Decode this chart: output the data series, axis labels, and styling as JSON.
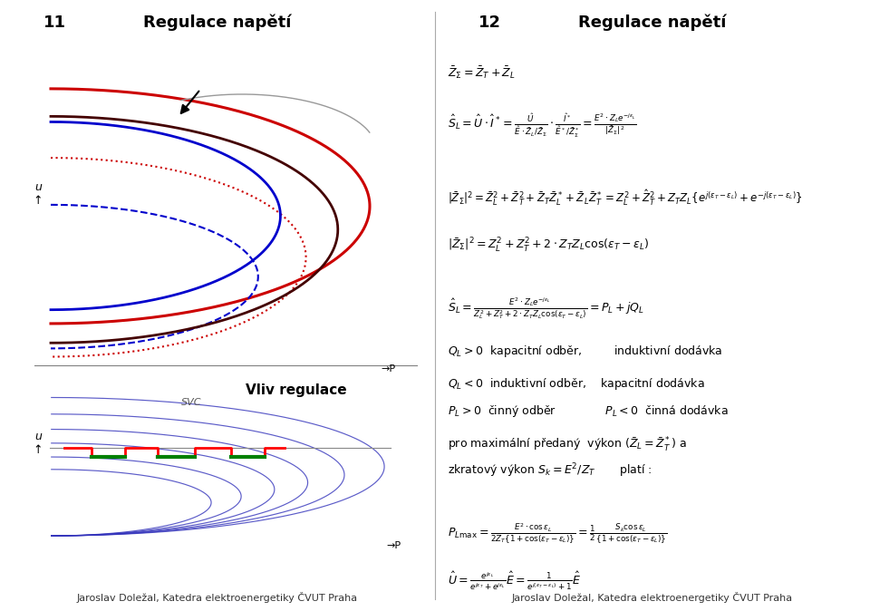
{
  "page_width": 9.6,
  "page_height": 6.74,
  "bg_color": "#ffffff",
  "left_title_num": "11",
  "right_title_num": "12",
  "title_text": "Regulace napětí",
  "footer_text": "Jaroslav Doležal, Katedra elektroenergetiky ČVUT Praha",
  "vliv_title": "Vliv regulace",
  "svc_label": "SVC"
}
